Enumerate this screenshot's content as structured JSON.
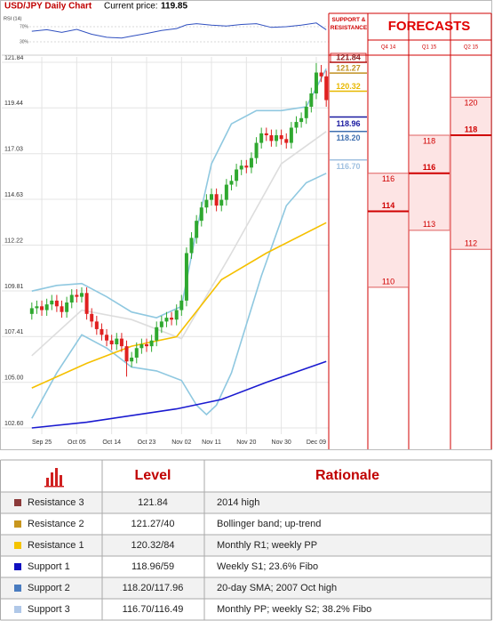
{
  "chart_data": {
    "type": "candlestick",
    "title": "USD/JPY Daily Chart",
    "price_label": "Current price:",
    "current_price": 119.85,
    "categories": [
      null,
      null,
      "Sep 25",
      null,
      null,
      null,
      null,
      null,
      null,
      "Oct 05",
      null,
      null,
      null,
      null,
      null,
      null,
      "Oct 14",
      null,
      null,
      null,
      null,
      null,
      null,
      "Oct 23",
      null,
      null,
      null,
      null,
      null,
      null,
      "Nov 02",
      null,
      null,
      null,
      null,
      null,
      "Nov 11",
      null,
      null,
      null,
      null,
      null,
      null,
      "Nov 20",
      null,
      null,
      null,
      null,
      null,
      null,
      "Nov 30",
      null,
      null,
      null,
      null,
      null,
      null,
      "Dec 09",
      null,
      null
    ],
    "open": [
      108.6,
      108.9,
      109.0,
      108.8,
      109.1,
      109.3,
      109.0,
      108.7,
      109.2,
      109.6,
      109.5,
      109.7,
      108.6,
      108.2,
      107.8,
      107.5,
      107.2,
      107.0,
      107.3,
      106.9,
      106.1,
      106.3,
      106.8,
      107.0,
      106.9,
      107.2,
      107.9,
      108.2,
      108.4,
      108.3,
      108.8,
      109.3,
      111.8,
      112.6,
      113.5,
      114.2,
      114.6,
      114.9,
      114.3,
      114.6,
      115.4,
      115.6,
      116.2,
      116.4,
      116.3,
      116.8,
      117.6,
      118.1,
      118.0,
      117.7,
      118.0,
      117.8,
      117.6,
      118.4,
      118.7,
      118.9,
      119.5,
      120.2,
      121.3,
      121.1
    ],
    "high": [
      109.2,
      109.3,
      109.3,
      109.4,
      109.6,
      109.6,
      109.3,
      109.5,
      109.9,
      109.9,
      110.0,
      110.0,
      108.9,
      108.5,
      108.1,
      107.8,
      107.5,
      107.6,
      107.6,
      107.2,
      106.6,
      107.1,
      107.3,
      107.3,
      107.5,
      108.2,
      108.5,
      108.7,
      108.7,
      109.1,
      109.6,
      112.1,
      112.9,
      113.8,
      114.5,
      114.9,
      115.2,
      115.2,
      114.9,
      115.7,
      115.9,
      116.5,
      116.7,
      116.7,
      117.1,
      117.9,
      118.4,
      118.4,
      118.3,
      118.3,
      118.3,
      118.1,
      118.7,
      119.0,
      119.2,
      119.8,
      120.5,
      121.8,
      121.7,
      121.4
    ],
    "low": [
      108.3,
      108.6,
      108.5,
      108.5,
      108.8,
      108.7,
      108.4,
      108.4,
      108.9,
      109.2,
      109.2,
      108.3,
      107.9,
      107.5,
      107.2,
      106.9,
      106.7,
      106.7,
      106.6,
      105.3,
      105.8,
      106.0,
      106.5,
      106.6,
      106.6,
      106.9,
      107.6,
      107.9,
      108.0,
      108.0,
      108.5,
      109.0,
      111.5,
      112.3,
      113.2,
      113.9,
      114.3,
      114.0,
      114.0,
      114.3,
      115.1,
      115.3,
      115.9,
      116.0,
      116.0,
      116.5,
      117.3,
      117.7,
      117.4,
      117.4,
      117.5,
      117.3,
      117.3,
      118.1,
      118.4,
      118.6,
      119.2,
      119.9,
      120.8,
      119.5
    ],
    "close": [
      108.9,
      109.0,
      108.8,
      109.1,
      109.3,
      109.0,
      108.7,
      109.2,
      109.6,
      109.5,
      109.7,
      108.6,
      108.2,
      107.8,
      107.5,
      107.2,
      107.0,
      107.3,
      106.9,
      106.1,
      106.3,
      106.8,
      107.0,
      106.9,
      107.2,
      107.9,
      108.2,
      108.4,
      108.3,
      108.8,
      109.3,
      111.8,
      112.6,
      113.5,
      114.2,
      114.6,
      114.9,
      114.3,
      114.6,
      115.4,
      115.6,
      116.2,
      116.4,
      116.3,
      116.8,
      117.6,
      118.1,
      118.0,
      117.7,
      118.0,
      117.8,
      117.6,
      118.4,
      118.7,
      118.9,
      119.5,
      120.2,
      121.3,
      121.1,
      119.85
    ],
    "up_color": "#2fa82f",
    "down_color": "#e02020",
    "ylim": [
      102.6,
      121.84
    ],
    "yticks": [
      121.84,
      119.44,
      117.03,
      114.63,
      112.22,
      109.81,
      107.41,
      {
        "value": 105,
        "label": "105.00"
      },
      {
        "value": 102.6,
        "label": "102.60"
      }
    ],
    "grid": true,
    "series": [
      {
        "color": "#8fc8e0",
        "x": [
          0,
          5,
          10,
          15,
          20,
          25,
          30,
          33,
          36,
          40,
          45,
          50,
          55,
          59
        ],
        "values": [
          109.8,
          110.1,
          110.2,
          109.5,
          108.7,
          108.4,
          109.0,
          113.0,
          116.5,
          118.6,
          119.3,
          119.3,
          119.5,
          121.5
        ]
      },
      {
        "color": "#8fc8e0",
        "x": [
          0,
          5,
          10,
          15,
          20,
          25,
          30,
          33,
          35,
          37,
          40,
          46,
          51,
          55,
          59
        ],
        "values": [
          103.1,
          105.5,
          107.5,
          106.8,
          105.8,
          105.6,
          105.1,
          103.8,
          103.3,
          103.8,
          105.5,
          110.6,
          114.3,
          115.5,
          116.0
        ]
      },
      {
        "color": "#dddddd",
        "x": [
          0,
          10,
          20,
          30,
          40,
          50,
          59
        ],
        "values": [
          106.4,
          108.8,
          108.3,
          107.3,
          111.8,
          116.5,
          118.2
        ]
      },
      {
        "color": "#f5c000",
        "x": [
          0,
          11,
          20,
          29,
          38,
          47,
          59
        ],
        "values": [
          104.7,
          106.0,
          106.9,
          107.4,
          110.4,
          111.8,
          113.4
        ]
      },
      {
        "color": "#1a1ad0",
        "x": [
          0,
          11,
          29,
          38,
          47,
          59
        ],
        "values": [
          102.6,
          102.9,
          103.6,
          104.1,
          105.0,
          106.1
        ]
      }
    ],
    "rsi": {
      "label": "RSI (14)",
      "color": "#3050c0",
      "ylim": [
        0,
        100
      ],
      "yticks": [
        {
          "value": 70,
          "label": "70%"
        },
        {
          "value": 30,
          "label": "30%"
        }
      ],
      "x": [
        0,
        3,
        6,
        9,
        12,
        15,
        18,
        20,
        23,
        26,
        29,
        31,
        33,
        36,
        39,
        42,
        45,
        48,
        51,
        54,
        57,
        59
      ],
      "values": [
        58,
        62,
        55,
        63,
        50,
        42,
        40,
        45,
        52,
        60,
        65,
        75,
        78,
        74,
        72,
        76,
        78,
        68,
        70,
        74,
        80,
        62
      ]
    },
    "support_resistance": {
      "title": "SUPPORT & RESISTANCE",
      "levels": [
        {
          "value": 121.84,
          "label": "121.84",
          "color": "#8b1a1a"
        },
        {
          "value": 121.27,
          "label": "121.27",
          "color": "#c09020"
        },
        {
          "value": 120.32,
          "label": "120.32",
          "color": "#e8b800"
        },
        {
          "value": 118.96,
          "label": "118.96",
          "color": "#1a1aa0"
        },
        {
          "value": 118.2,
          "label": "118.20",
          "color": "#4070b0"
        },
        {
          "value": 116.7,
          "label": "116.70",
          "color": "#a0c0e0"
        }
      ]
    },
    "forecasts": {
      "title": "FORECASTS",
      "color": "#d00000",
      "columns": [
        {
          "name": "Q4 14",
          "high": 116,
          "mid": 114,
          "low": 110
        },
        {
          "name": "Q1 15",
          "high": 118,
          "mid": 116,
          "low": 113
        },
        {
          "name": "Q2 15",
          "high": 120,
          "mid": 118,
          "low": 112
        }
      ]
    }
  },
  "table": {
    "header": [
      "Level",
      "Rationale"
    ],
    "rows": [
      [
        "Resistance 3",
        "121.84",
        "2014 high"
      ],
      [
        "Resistance 2",
        "121.27/40",
        "Bollinger band; up-trend"
      ],
      [
        "Resistance 1",
        "120.32/84",
        "Monthly R1; weekly PP"
      ],
      [
        "Support 1",
        "118.96/59",
        "Weekly S1; 23.6% Fibo"
      ],
      [
        "Support 2",
        "118.20/117.96",
        "20-day SMA; 2007 Oct high"
      ],
      [
        "Support 3",
        "116.70/116.49",
        "Monthly PP; weekly S2; 38.2% Fibo"
      ]
    ],
    "row_colors": [
      "#8b3a3a",
      "#c8961e",
      "#f5c400",
      "#1010c0",
      "#4a7cc0",
      "#b0c8e8"
    ]
  }
}
